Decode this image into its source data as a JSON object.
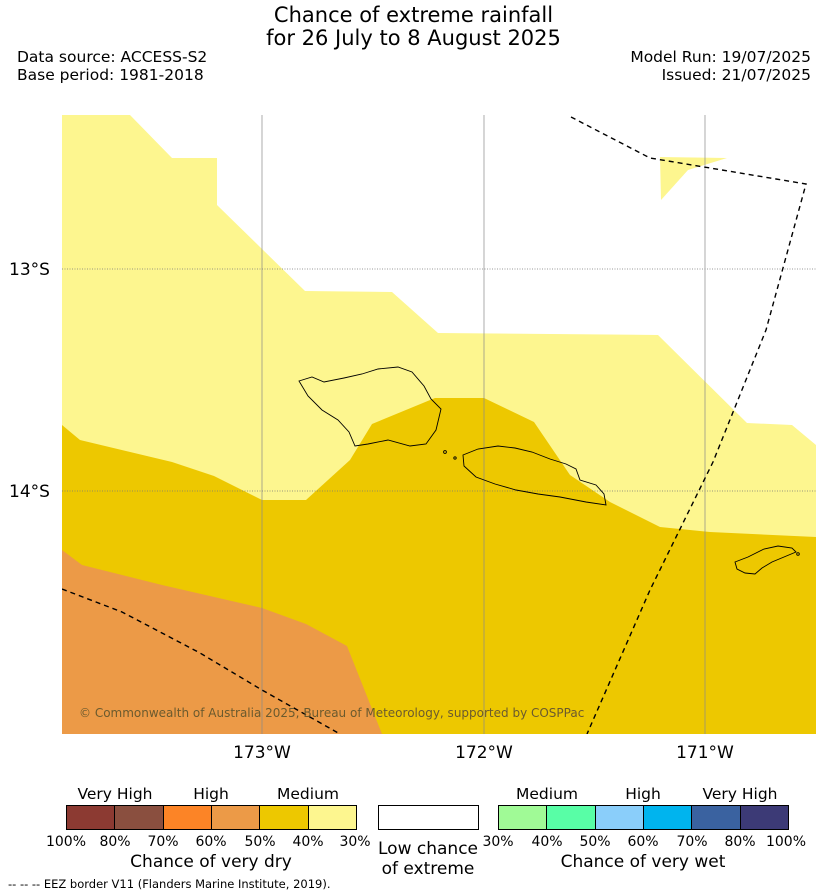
{
  "title_line1": "Chance of extreme rainfall",
  "title_line2": "for 26 July to 8 August 2025",
  "data_source": "Data source: ACCESS-S2",
  "base_period": "Base period: 1981-2018",
  "model_run": "Model Run: 19/07/2025",
  "issued": "Issued: 21/07/2025",
  "map": {
    "lat_labels": [
      "13°S",
      "14°S"
    ],
    "lon_labels": [
      "173°W",
      "172°W",
      "171°W"
    ],
    "credit": "© Commonwealth of Australia 2025, Bureau of Meteorology, supported by COSPPac",
    "colors": {
      "medium_dry_light": "#fdf68f",
      "medium_dry_dark": "#edc800",
      "high_dry": "#ec9a47"
    }
  },
  "legend": {
    "dry": {
      "categories": [
        "Very High",
        "High",
        "Medium"
      ],
      "colors": [
        "#8c3a32",
        "#8a4f3f",
        "#fc8426",
        "#ec9a47",
        "#edc800",
        "#fdf68f"
      ],
      "ticks": [
        "100%",
        "80%",
        "70%",
        "60%",
        "50%",
        "40%",
        "30%"
      ],
      "label": "Chance of very dry"
    },
    "low": {
      "label_line1": "Low chance",
      "label_line2": "of extreme",
      "color": "#ffffff"
    },
    "wet": {
      "categories": [
        "Medium",
        "High",
        "Very High"
      ],
      "colors": [
        "#a0fa96",
        "#58fea6",
        "#8acefa",
        "#00b4ee",
        "#3a62a0",
        "#3c3a76"
      ],
      "ticks": [
        "30%",
        "40%",
        "50%",
        "60%",
        "70%",
        "80%",
        "100%"
      ],
      "label": "Chance of very wet"
    }
  },
  "footnote": "-- -- -- EEZ border V11 (Flanders Marine Institute, 2019)."
}
